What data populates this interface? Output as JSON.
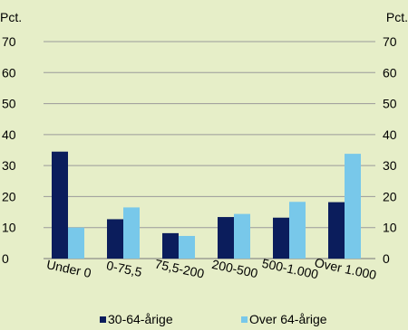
{
  "chart_data": {
    "type": "bar",
    "y_unit_left": "Pct.",
    "y_unit_right": "Pct.",
    "categories": [
      "Under 0",
      "0-75,5",
      "75,5-200",
      "200-500",
      "500-1.000",
      "Over 1.000"
    ],
    "series": [
      {
        "name": "30-64-årige",
        "color": "#0b1d5c",
        "values": [
          34.5,
          12.7,
          8.2,
          13.4,
          13.2,
          18.2
        ]
      },
      {
        "name": "Over 64-årige",
        "color": "#78c8ea",
        "values": [
          10.0,
          16.5,
          7.3,
          14.4,
          18.3,
          33.8
        ]
      }
    ],
    "ylim": [
      0,
      70
    ],
    "yticks": [
      0,
      10,
      20,
      30,
      40,
      50,
      60,
      70
    ],
    "grid": true,
    "legend_position": "bottom"
  }
}
